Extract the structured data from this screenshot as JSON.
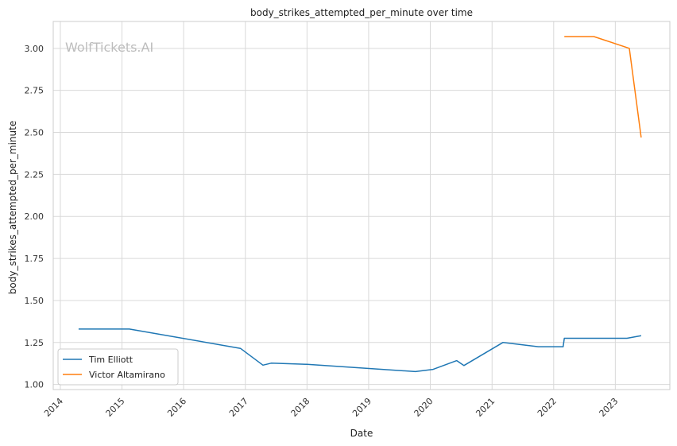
{
  "chart_data": {
    "type": "line",
    "title": "body_strikes_attempted_per_minute over time",
    "xlabel": "Date",
    "ylabel": "body_strikes_attempted_per_minute",
    "watermark": "WolfTickets.AI",
    "x_ticks": [
      "2014",
      "2015",
      "2016",
      "2017",
      "2018",
      "2019",
      "2020",
      "2021",
      "2022",
      "2023"
    ],
    "y_ticks": [
      "1.00",
      "1.25",
      "1.50",
      "1.75",
      "2.00",
      "2.25",
      "2.50",
      "2.75",
      "3.00"
    ],
    "xlim": [
      "2013-11-20",
      "2023-11-20"
    ],
    "ylim": [
      0.97,
      3.16
    ],
    "grid": true,
    "legend_position": "lower-left",
    "series": [
      {
        "name": "Tim Elliott",
        "color": "#1f77b4",
        "points": [
          {
            "x": "2014-04-19",
            "y": 1.33
          },
          {
            "x": "2015-02-14",
            "y": 1.33
          },
          {
            "x": "2016-12-03",
            "y": 1.215
          },
          {
            "x": "2017-04-15",
            "y": 1.115
          },
          {
            "x": "2017-06-03",
            "y": 1.127
          },
          {
            "x": "2018-01-01",
            "y": 1.12
          },
          {
            "x": "2019-10-05",
            "y": 1.077
          },
          {
            "x": "2020-01-18",
            "y": 1.09
          },
          {
            "x": "2020-06-06",
            "y": 1.142
          },
          {
            "x": "2020-07-18",
            "y": 1.113
          },
          {
            "x": "2021-03-06",
            "y": 1.25
          },
          {
            "x": "2021-10-02",
            "y": 1.225
          },
          {
            "x": "2022-02-26",
            "y": 1.225
          },
          {
            "x": "2022-03-05",
            "y": 1.275
          },
          {
            "x": "2023-03-11",
            "y": 1.275
          },
          {
            "x": "2023-06-03",
            "y": 1.29
          }
        ]
      },
      {
        "name": "Victor Altamirano",
        "color": "#ff7f0e",
        "points": [
          {
            "x": "2022-03-05",
            "y": 3.07
          },
          {
            "x": "2022-08-27",
            "y": 3.07
          },
          {
            "x": "2023-03-25",
            "y": 3.0
          },
          {
            "x": "2023-06-03",
            "y": 2.47
          }
        ]
      }
    ]
  }
}
